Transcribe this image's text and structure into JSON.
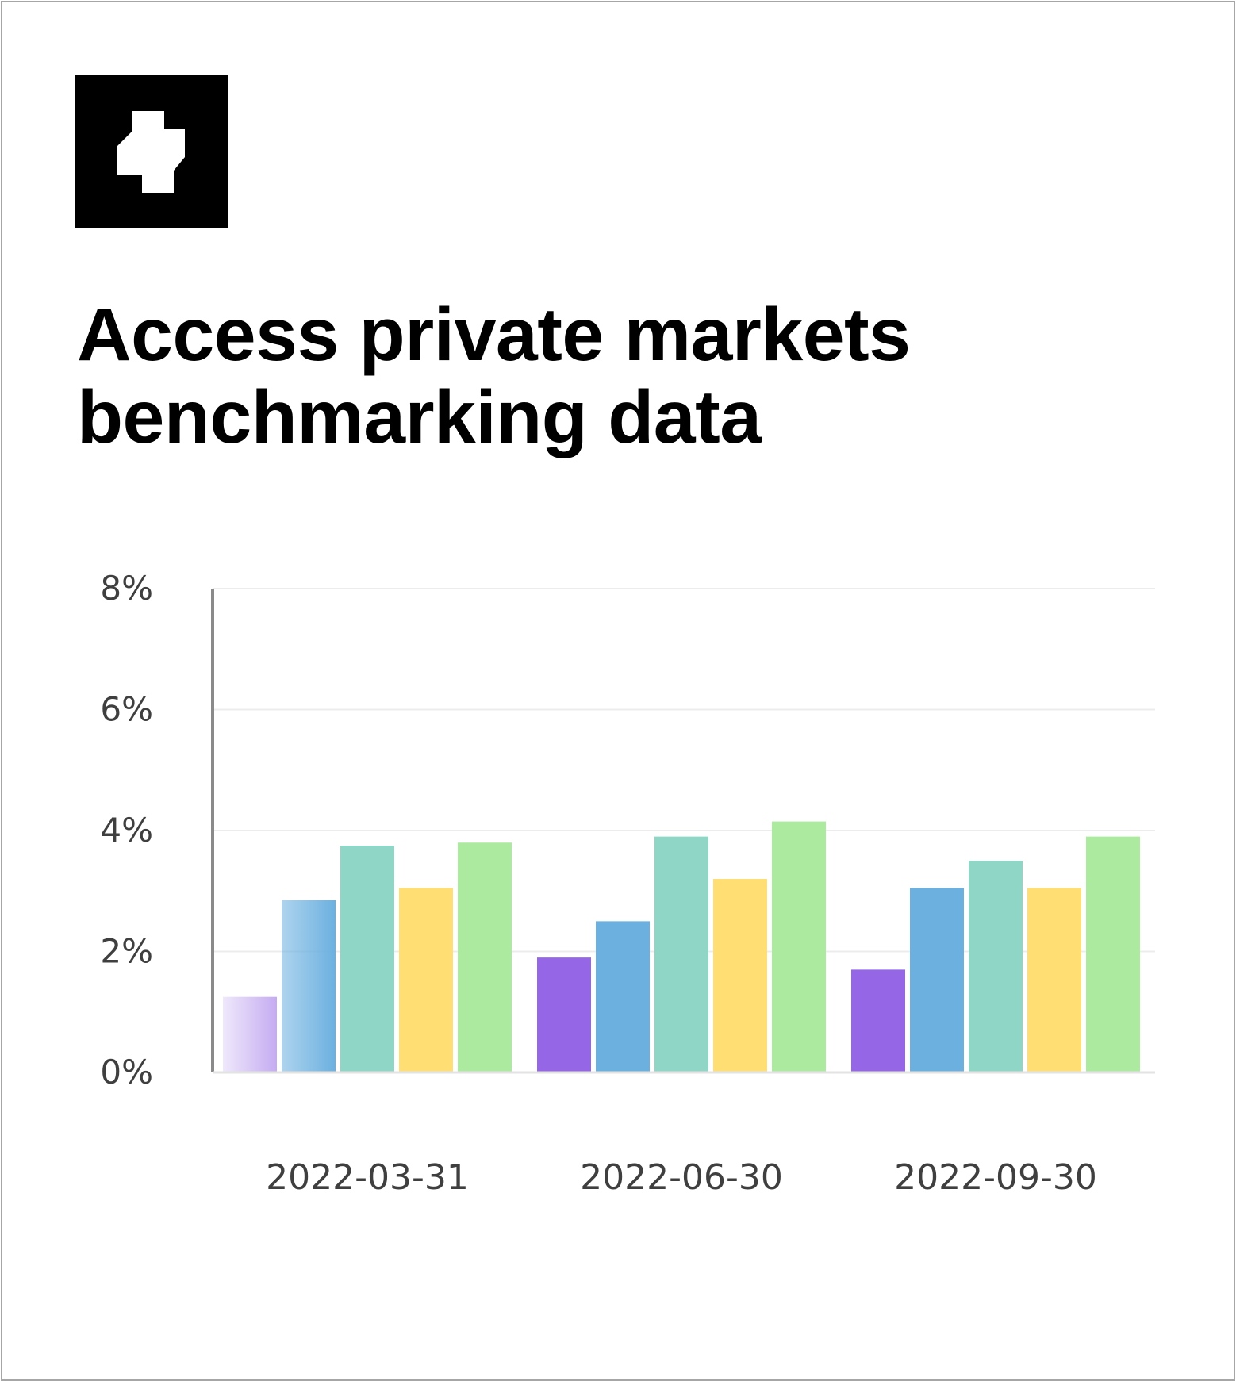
{
  "headline": {
    "line1": "Access private markets",
    "line2": "benchmarking data"
  },
  "logo": {
    "icon": "white-block-glyph-logo",
    "background": "#000000",
    "foreground": "#ffffff"
  },
  "chart_data": {
    "type": "bar",
    "title": "",
    "xlabel": "",
    "ylabel": "",
    "ylim": [
      0,
      8
    ],
    "y_ticks": [
      {
        "value": 0,
        "label": "0%"
      },
      {
        "value": 2,
        "label": "2%"
      },
      {
        "value": 4,
        "label": "4%"
      },
      {
        "value": 6,
        "label": "6%"
      },
      {
        "value": 8,
        "label": "8%"
      }
    ],
    "grid": true,
    "legend": "none",
    "categories": [
      "2022-03-31",
      "2022-06-30",
      "2022-09-30"
    ],
    "series": [
      {
        "color": "#9567e6",
        "values": [
          1.25,
          1.9,
          1.7
        ]
      },
      {
        "color": "#6cb0e0",
        "values": [
          2.85,
          2.5,
          3.05
        ]
      },
      {
        "color": "#8fd6c7",
        "values": [
          3.75,
          3.9,
          3.5
        ]
      },
      {
        "color": "#ffdf73",
        "values": [
          3.05,
          3.2,
          3.05
        ]
      },
      {
        "color": "#acea9f",
        "values": [
          3.8,
          4.15,
          3.9
        ]
      }
    ]
  }
}
